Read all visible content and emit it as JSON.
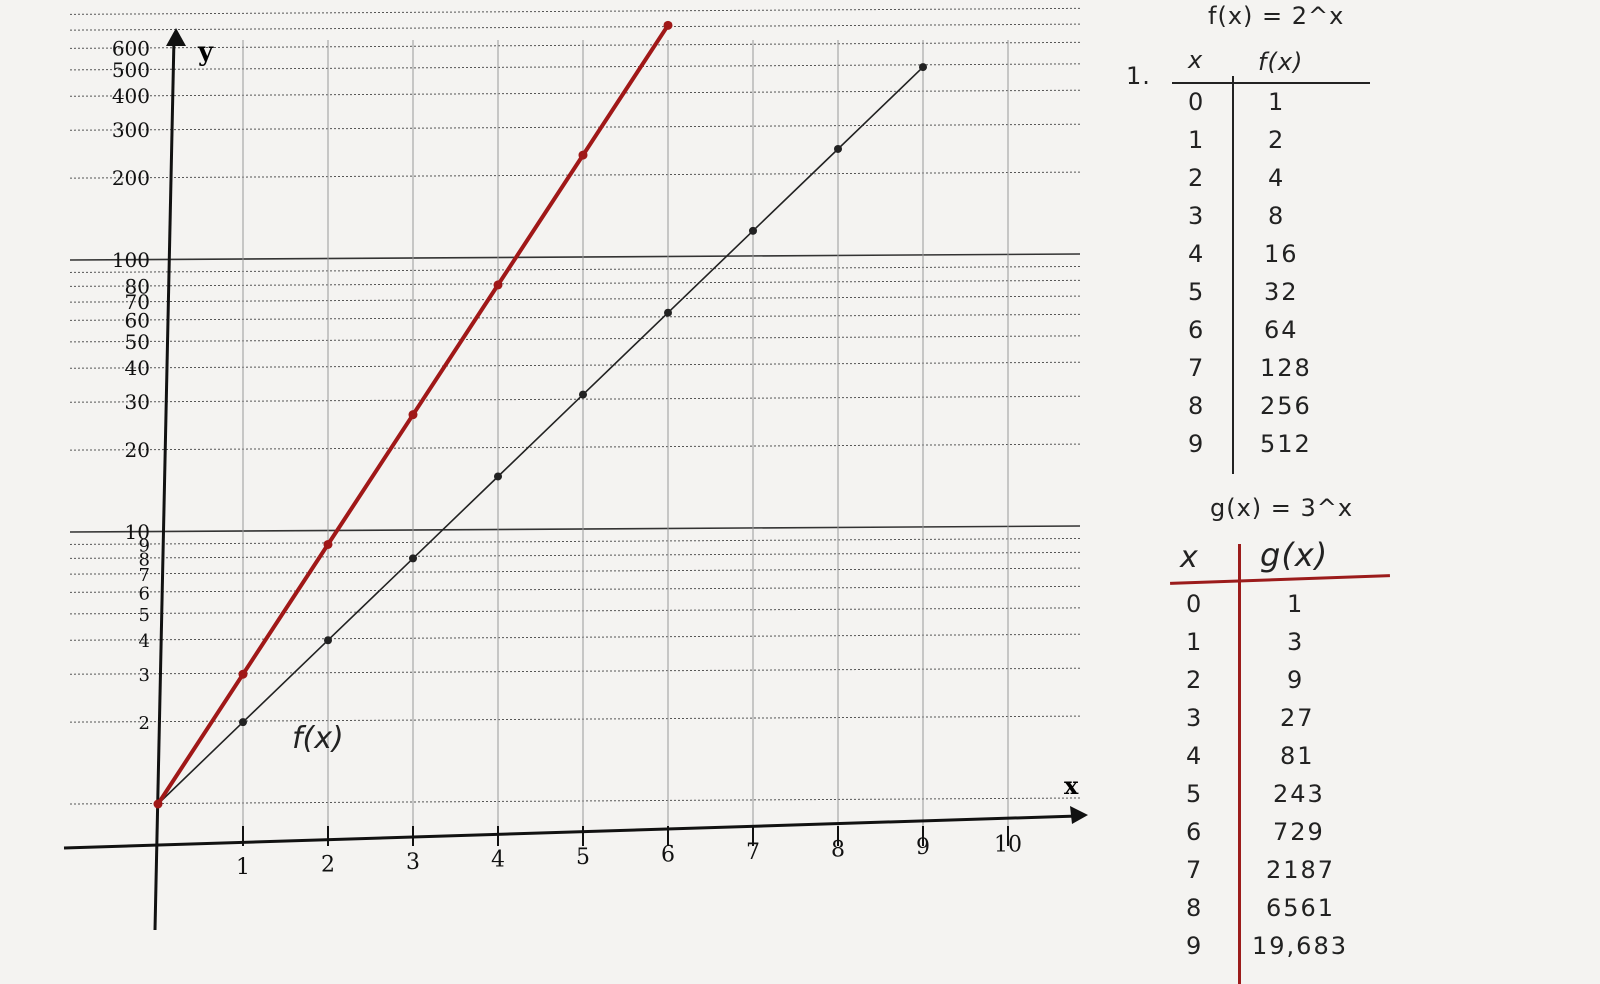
{
  "chart_data": {
    "type": "line",
    "scale": "semi-log (log y axis)",
    "xlabel": "x",
    "ylabel": "y",
    "xlim": [
      0,
      11
    ],
    "ylim": [
      1,
      700
    ],
    "x_ticks": [
      "1",
      "2",
      "3",
      "4",
      "5",
      "6",
      "7",
      "8",
      "9",
      "10"
    ],
    "y_ticks_major": [
      "2",
      "3",
      "4",
      "5",
      "6",
      "7",
      "8",
      "9",
      "10",
      "20",
      "30",
      "40",
      "50",
      "60",
      "70",
      "80",
      "100",
      "200",
      "300",
      "400",
      "500",
      "600"
    ],
    "y_tick_values": [
      2,
      3,
      4,
      5,
      6,
      7,
      8,
      9,
      10,
      20,
      30,
      40,
      50,
      60,
      70,
      80,
      100,
      200,
      300,
      400,
      500,
      600
    ],
    "series": [
      {
        "name": "f(x)",
        "color": "#222222",
        "x": [
          0,
          1,
          2,
          3,
          4,
          5,
          6,
          7,
          8,
          9
        ],
        "y": [
          1,
          2,
          4,
          8,
          16,
          32,
          64,
          128,
          256,
          512
        ]
      },
      {
        "name": "",
        "color": "#a01818",
        "x": [
          0,
          1,
          2,
          3,
          4,
          5,
          6
        ],
        "y": [
          1,
          3,
          9,
          27,
          81,
          243,
          729
        ]
      }
    ],
    "annotations": [
      "f(x)"
    ],
    "grid": true
  },
  "tables": {
    "label_1": "1.",
    "f_title": "f(x) = 2^x",
    "f_header_x": "x",
    "f_header_fx": "f(x)",
    "f_rows": [
      [
        "0",
        "1"
      ],
      [
        "1",
        "2"
      ],
      [
        "2",
        "4"
      ],
      [
        "3",
        "8"
      ],
      [
        "4",
        "16"
      ],
      [
        "5",
        "32"
      ],
      [
        "6",
        "64"
      ],
      [
        "7",
        "128"
      ],
      [
        "8",
        "256"
      ],
      [
        "9",
        "512"
      ]
    ],
    "g_title": "g(x) = 3^x",
    "g_header_x": "x",
    "g_header_gx": "g(x)",
    "g_rows": [
      [
        "0",
        "1"
      ],
      [
        "1",
        "3"
      ],
      [
        "2",
        "9"
      ],
      [
        "3",
        "27"
      ],
      [
        "4",
        "81"
      ],
      [
        "5",
        "243"
      ],
      [
        "6",
        "729"
      ],
      [
        "7",
        "2187"
      ],
      [
        "8",
        "6561"
      ],
      [
        "9",
        "19,683"
      ]
    ]
  }
}
